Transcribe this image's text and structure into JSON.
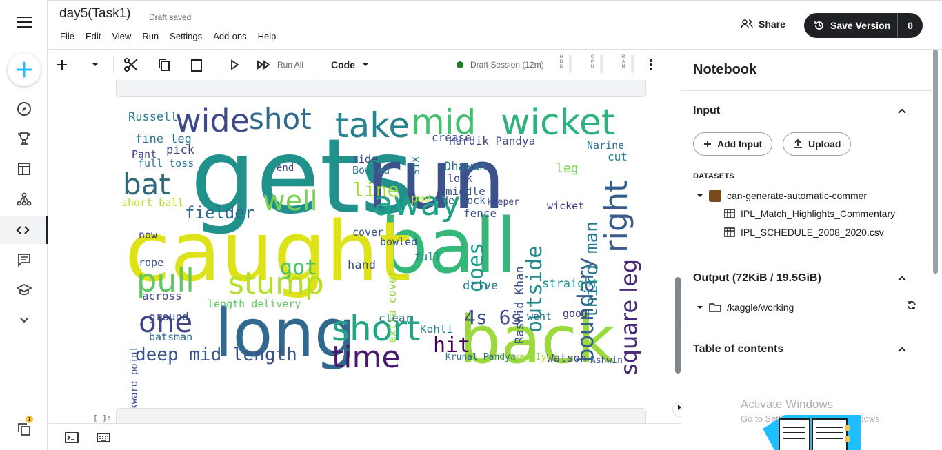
{
  "header": {
    "title": "day5(Task1)",
    "status": "Draft saved",
    "menu": [
      "File",
      "Edit",
      "View",
      "Run",
      "Settings",
      "Add-ons",
      "Help"
    ],
    "share_label": "Share",
    "save_version_label": "Save Version",
    "version_count": "0"
  },
  "rail": {
    "items": [
      "compass-icon",
      "trophy-icon",
      "table-icon",
      "models-icon",
      "code-icon",
      "comments-icon",
      "learn-icon",
      "chevron-down-icon"
    ],
    "active": "code-icon",
    "notification_count": "1"
  },
  "toolbar": {
    "run_all_label": "Run All",
    "cell_type": "Code",
    "session_label": "Draft Session (12m)",
    "session_color": "#20802a",
    "meters": [
      "HDD",
      "CPU",
      "RAM"
    ]
  },
  "cell": {
    "prompt": "[ ]:"
  },
  "wordcloud": {
    "words": [
      {
        "t": "ball",
        "c": "#35b779"
      },
      {
        "t": "gets",
        "c": "#21918c"
      },
      {
        "t": "run",
        "c": "#3b528b"
      },
      {
        "t": "caught",
        "c": "#dde318"
      },
      {
        "t": "long",
        "c": "#31688e"
      },
      {
        "t": "back",
        "c": "#9bd93c"
      },
      {
        "t": "short",
        "c": "#21a685"
      },
      {
        "t": "wicket",
        "c": "#2db27d"
      },
      {
        "t": "mid",
        "c": "#44bf70"
      },
      {
        "t": "take",
        "c": "#26828e"
      },
      {
        "t": "wide",
        "c": "#3e4989"
      },
      {
        "t": "shot",
        "c": "#31688e"
      },
      {
        "t": "away",
        "c": "#1fa187"
      },
      {
        "t": "well",
        "c": "#7ad151"
      },
      {
        "t": "bat",
        "c": "#30697d"
      },
      {
        "t": "pull",
        "c": "#5ec962"
      },
      {
        "t": "stump",
        "c": "#b5de2b"
      },
      {
        "t": "one",
        "c": "#414487"
      },
      {
        "t": "time",
        "c": "#481a6c"
      },
      {
        "t": "right",
        "c": "#365c8d"
      },
      {
        "t": "square leg",
        "c": "#482878"
      },
      {
        "t": "boundary",
        "c": "#355f8d"
      },
      {
        "t": "third man",
        "c": "#2a788e"
      },
      {
        "t": "outside",
        "c": "#23898e"
      },
      {
        "t": "deep mid length",
        "c": "#3b528b"
      },
      {
        "t": "got",
        "c": "#4ac16d"
      },
      {
        "t": "hit",
        "c": "#440154"
      },
      {
        "t": "4s 6s",
        "c": "#3e4a89"
      },
      {
        "t": "goes",
        "c": "#1f9a8a"
      },
      {
        "t": "line",
        "c": "#a0da39"
      },
      {
        "t": "fielder",
        "c": "#31688e"
      },
      {
        "t": "Hardik Pandya",
        "c": "#404688"
      },
      {
        "t": "Russell",
        "c": "#29788e"
      },
      {
        "t": "fine leg",
        "c": "#2c728e"
      },
      {
        "t": "pick",
        "c": "#3f4889"
      },
      {
        "t": "Pant",
        "c": "#433e85"
      },
      {
        "t": "full toss",
        "c": "#2a768e"
      },
      {
        "t": "Narine",
        "c": "#2e6e8e"
      },
      {
        "t": "cut",
        "c": "#27808e"
      },
      {
        "t": "leg",
        "c": "#75d054"
      },
      {
        "t": "crease",
        "c": "#3d4e8a"
      },
      {
        "t": "Dhawan",
        "c": "#2d718e"
      },
      {
        "t": "look",
        "c": "#3f4788"
      },
      {
        "t": "middle",
        "c": "#3a548c"
      },
      {
        "t": "de Kock",
        "c": "#38588c"
      },
      {
        "t": "fence",
        "c": "#3a538b"
      },
      {
        "t": "wicket",
        "c": "#46337e"
      },
      {
        "t": "cover",
        "c": "#3b528b"
      },
      {
        "t": "hand",
        "c": "#3e4989"
      },
      {
        "t": "extra cover",
        "c": "#90d743"
      },
      {
        "t": "full",
        "c": "#238a8d"
      },
      {
        "t": "drive",
        "c": "#2a768e"
      },
      {
        "t": "straight",
        "c": "#21908d"
      },
      {
        "t": "Rashid Khan",
        "c": "#3b528b"
      },
      {
        "t": "went",
        "c": "#2c728e"
      },
      {
        "t": "good",
        "c": "#433d84"
      },
      {
        "t": "Kohli",
        "c": "#2a778e"
      },
      {
        "t": "clear",
        "c": "#2b748e"
      },
      {
        "t": "Watson",
        "c": "#404688"
      },
      {
        "t": "batsman",
        "c": "#2f6b8e"
      },
      {
        "t": "ground",
        "c": "#3d4d8a"
      },
      {
        "t": "across",
        "c": "#3e4c8a"
      },
      {
        "t": "length delivery",
        "c": "#5ec962"
      },
      {
        "t": "now",
        "c": "#453781"
      },
      {
        "t": "rope",
        "c": "#3b518b"
      },
      {
        "t": "backward point",
        "c": "#3e4a89"
      },
      {
        "t": "short ball",
        "c": "#b8de29"
      },
      {
        "t": "bowled",
        "c": "#3b528b"
      },
      {
        "t": "SIX",
        "c": "#2d708e"
      },
      {
        "t": "side",
        "c": "#3e4989"
      },
      {
        "t": "end",
        "c": "#3f4788"
      },
      {
        "t": "pad",
        "c": "#c2df23"
      },
      {
        "t": "Krunal Pandya",
        "c": "#2e6e8e"
      },
      {
        "t": "Shreyas Iyer",
        "c": "#9bd93c"
      },
      {
        "t": "Ashwin",
        "c": "#3b528b"
      },
      {
        "t": "Bowled",
        "c": "#2a788e"
      },
      {
        "t": "keeper",
        "c": "#3f4788"
      }
    ]
  },
  "panel": {
    "title": "Notebook",
    "input_header": "Input",
    "add_input_label": "Add Input",
    "upload_label": "Upload",
    "datasets_label": "DATASETS",
    "dataset_name": "can-generate-automatic-commer",
    "files": [
      "IPL_Match_Highlights_Commentary",
      "IPL_SCHEDULE_2008_2020.csv"
    ],
    "output_header": "Output (72KiB / 19.5GiB)",
    "output_path": "/kaggle/working",
    "toc_header": "Table of contents",
    "watermark_title": "Activate Windows",
    "watermark_sub": "Go to Settings to activate Windows."
  }
}
